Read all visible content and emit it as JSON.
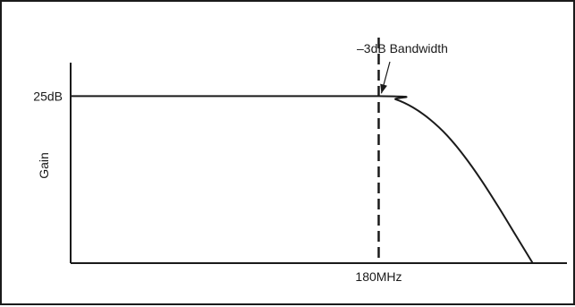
{
  "chart_data": {
    "type": "line",
    "title": "",
    "ylabel": "Gain",
    "xlabel": "",
    "x_ticks": [
      {
        "value": 180,
        "label": "180MHz"
      }
    ],
    "y_ticks": [
      {
        "value": 25,
        "label": "25dB"
      }
    ],
    "xlim": [
      0,
      290
    ],
    "ylim": [
      0,
      30
    ],
    "series": [
      {
        "x": [
          0,
          180,
          190,
          200,
          210,
          220,
          230,
          240,
          250,
          260,
          270
        ],
        "y": [
          25,
          25,
          24.5,
          23.3,
          21.5,
          19.1,
          16,
          12.4,
          8.4,
          4.2,
          0
        ]
      }
    ],
    "annotations": [
      {
        "text": "–3dB Bandwidth",
        "x": 180,
        "y": 25
      }
    ],
    "grid": false,
    "legend": "none",
    "color": "#1a1a1a"
  }
}
